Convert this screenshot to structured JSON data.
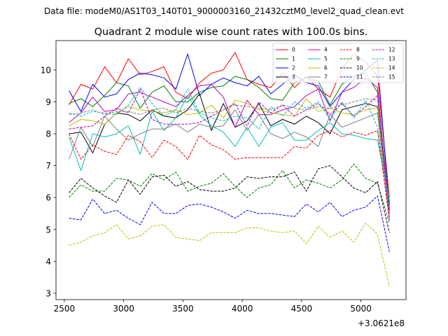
{
  "chart_data": {
    "type": "line",
    "suptitle": "Data file: modeM0/AS1T03_140T01_9000003160_21432cztM0_level2_quad_clean.evt",
    "title": "Quadrant 2 module wise count rates with 100.0s bins.",
    "xlabel": "",
    "ylabel": "",
    "x_offset_label": "+3.0621e8",
    "xlim": [
      2430,
      5380
    ],
    "ylim": [
      2.8,
      10.92
    ],
    "xticks": [
      2500,
      3000,
      3500,
      4000,
      4500,
      5000
    ],
    "yticks": [
      3,
      4,
      5,
      6,
      7,
      8,
      9,
      10
    ],
    "legend_position": "upper-right",
    "x": [
      2540,
      2640,
      2740,
      2840,
      2940,
      3040,
      3140,
      3240,
      3340,
      3440,
      3540,
      3640,
      3740,
      3840,
      3940,
      4040,
      4140,
      4240,
      4340,
      4440,
      4540,
      4640,
      4740,
      4840,
      4940,
      5040,
      5140,
      5240
    ],
    "series": [
      {
        "name": "0",
        "color": "#ff0000",
        "dash": "solid",
        "values": [
          8.9,
          9.55,
          9.4,
          10.1,
          9.6,
          10.35,
          9.85,
          9.95,
          10.1,
          9.3,
          9.1,
          9.6,
          9.9,
          10.0,
          10.55,
          9.7,
          9.55,
          9.45,
          9.9,
          9.45,
          9.8,
          9.4,
          9.15,
          10.05,
          10.5,
          10.25,
          9.8,
          6.0
        ]
      },
      {
        "name": "1",
        "color": "#008000",
        "dash": "solid",
        "values": [
          8.95,
          9.1,
          8.85,
          9.2,
          9.6,
          9.5,
          8.8,
          9.3,
          9.5,
          9.0,
          9.0,
          9.3,
          9.45,
          9.5,
          9.8,
          9.7,
          9.45,
          9.1,
          9.05,
          9.6,
          9.75,
          9.65,
          8.9,
          9.55,
          9.8,
          9.9,
          9.3,
          5.7
        ]
      },
      {
        "name": "2",
        "color": "#0000ff",
        "dash": "solid",
        "values": [
          9.35,
          8.7,
          9.55,
          9.15,
          9.25,
          9.7,
          9.9,
          9.85,
          9.75,
          9.4,
          10.5,
          9.2,
          9.55,
          9.75,
          9.6,
          9.5,
          9.8,
          9.25,
          9.55,
          9.85,
          9.6,
          9.5,
          8.85,
          9.3,
          9.7,
          10.0,
          10.3,
          5.6
        ]
      },
      {
        "name": "3",
        "color": "#000000",
        "dash": "solid",
        "values": [
          8.0,
          8.05,
          7.4,
          8.3,
          8.65,
          8.6,
          8.4,
          8.75,
          8.55,
          8.5,
          8.75,
          9.25,
          8.1,
          8.95,
          8.2,
          8.4,
          8.95,
          8.25,
          8.45,
          8.3,
          8.55,
          8.35,
          8.0,
          8.75,
          8.85,
          8.95,
          8.85,
          5.8
        ]
      },
      {
        "name": "4",
        "color": "#bf00bf",
        "dash": "solid",
        "values": [
          8.35,
          8.65,
          9.15,
          8.7,
          8.75,
          9.25,
          9.3,
          9.15,
          9.0,
          8.85,
          9.2,
          9.5,
          9.55,
          9.15,
          8.2,
          9.05,
          8.6,
          8.6,
          8.75,
          8.85,
          9.2,
          9.4,
          8.4,
          9.3,
          9.45,
          9.75,
          9.45,
          5.5
        ]
      },
      {
        "name": "5",
        "color": "#00bfbf",
        "dash": "solid",
        "values": [
          7.9,
          6.85,
          8.0,
          7.9,
          8.0,
          8.25,
          7.35,
          8.7,
          8.1,
          8.5,
          9.2,
          8.6,
          8.25,
          8.05,
          7.6,
          8.2,
          7.6,
          8.2,
          8.35,
          7.8,
          7.8,
          8.1,
          8.35,
          8.0,
          7.95,
          7.85,
          7.8,
          5.9
        ]
      },
      {
        "name": "6",
        "color": "#bfbf00",
        "dash": "solid",
        "values": [
          8.25,
          8.45,
          8.4,
          8.3,
          8.65,
          8.85,
          8.75,
          8.7,
          8.65,
          8.75,
          8.6,
          8.65,
          8.9,
          8.5,
          9.05,
          8.95,
          8.75,
          8.65,
          8.6,
          8.55,
          9.1,
          8.7,
          8.8,
          8.65,
          8.6,
          8.75,
          8.8,
          5.4
        ]
      },
      {
        "name": "7",
        "color": "#808080",
        "dash": "solid",
        "values": [
          7.2,
          8.2,
          7.6,
          8.55,
          8.15,
          7.8,
          8.0,
          8.15,
          8.15,
          8.3,
          8.05,
          8.3,
          8.2,
          8.25,
          8.75,
          8.1,
          8.6,
          8.0,
          7.85,
          8.05,
          7.9,
          7.6,
          8.6,
          8.2,
          8.35,
          8.5,
          8.65,
          5.3
        ]
      },
      {
        "name": "8",
        "color": "#ff0000",
        "dash": "dashed",
        "values": [
          8.0,
          7.2,
          7.65,
          7.45,
          7.35,
          7.95,
          7.75,
          7.25,
          7.8,
          7.6,
          7.2,
          7.95,
          7.65,
          7.5,
          7.2,
          7.25,
          7.25,
          7.25,
          7.25,
          7.6,
          7.55,
          7.95,
          8.1,
          7.9,
          8.05,
          7.95,
          8.1,
          5.3
        ]
      },
      {
        "name": "9",
        "color": "#008000",
        "dash": "dashed",
        "values": [
          6.0,
          6.4,
          6.2,
          6.2,
          6.6,
          6.55,
          6.35,
          6.75,
          6.55,
          6.8,
          6.2,
          6.35,
          6.45,
          6.75,
          6.35,
          6.0,
          6.3,
          6.4,
          6.85,
          6.3,
          6.55,
          6.45,
          6.3,
          6.55,
          7.05,
          6.6,
          6.45,
          5.2
        ]
      },
      {
        "name": "10",
        "color": "#000000",
        "dash": "dashed",
        "values": [
          6.15,
          6.6,
          6.3,
          6.05,
          5.85,
          6.55,
          6.1,
          6.65,
          6.7,
          6.35,
          6.5,
          6.25,
          6.2,
          6.2,
          6.3,
          6.65,
          6.6,
          6.65,
          6.65,
          6.8,
          6.2,
          6.9,
          7.0,
          6.65,
          6.3,
          6.15,
          6.5,
          4.9
        ]
      },
      {
        "name": "11",
        "color": "#0000ff",
        "dash": "dashed",
        "values": [
          5.35,
          5.3,
          5.95,
          5.5,
          5.6,
          5.35,
          5.15,
          5.85,
          5.5,
          5.5,
          5.75,
          5.8,
          5.7,
          5.55,
          5.35,
          5.6,
          5.5,
          5.5,
          5.45,
          5.4,
          5.8,
          5.55,
          5.85,
          5.4,
          5.6,
          5.7,
          6.05,
          4.3
        ]
      },
      {
        "name": "12",
        "color": "#bf00bf",
        "dash": "dashed",
        "values": [
          8.15,
          8.2,
          8.25,
          8.55,
          8.8,
          8.65,
          9.4,
          8.45,
          8.3,
          8.3,
          8.3,
          8.35,
          8.55,
          8.75,
          8.95,
          8.25,
          9.0,
          8.65,
          8.9,
          8.55,
          8.75,
          8.95,
          8.6,
          8.95,
          8.55,
          8.85,
          9.2,
          5.3
        ]
      },
      {
        "name": "13",
        "color": "#00bfbf",
        "dash": "dashed",
        "values": [
          8.65,
          8.55,
          8.7,
          8.65,
          8.6,
          8.9,
          9.45,
          8.95,
          8.55,
          8.75,
          9.4,
          8.65,
          8.5,
          8.4,
          8.55,
          8.5,
          8.15,
          8.85,
          8.55,
          9.0,
          8.8,
          9.0,
          8.45,
          9.0,
          8.5,
          9.05,
          8.2,
          5.7
        ]
      },
      {
        "name": "14",
        "color": "#bfbf00",
        "dash": "dashed",
        "values": [
          4.5,
          4.6,
          4.8,
          4.9,
          5.15,
          4.7,
          4.8,
          5.1,
          5.15,
          4.75,
          4.7,
          4.65,
          4.9,
          4.9,
          4.9,
          5.05,
          5.05,
          4.95,
          4.9,
          4.95,
          4.55,
          5.1,
          4.75,
          4.95,
          4.6,
          5.2,
          4.85,
          3.2
        ]
      },
      {
        "name": "15",
        "color": "#808080",
        "dash": "dashed",
        "values": [
          8.6,
          8.65,
          8.75,
          8.6,
          8.7,
          8.7,
          8.6,
          8.75,
          8.8,
          8.65,
          8.8,
          8.7,
          8.65,
          8.75,
          8.9,
          8.85,
          8.8,
          8.75,
          8.9,
          8.8,
          8.75,
          8.85,
          8.8,
          8.9,
          9.0,
          9.1,
          9.05,
          5.9
        ]
      }
    ]
  }
}
